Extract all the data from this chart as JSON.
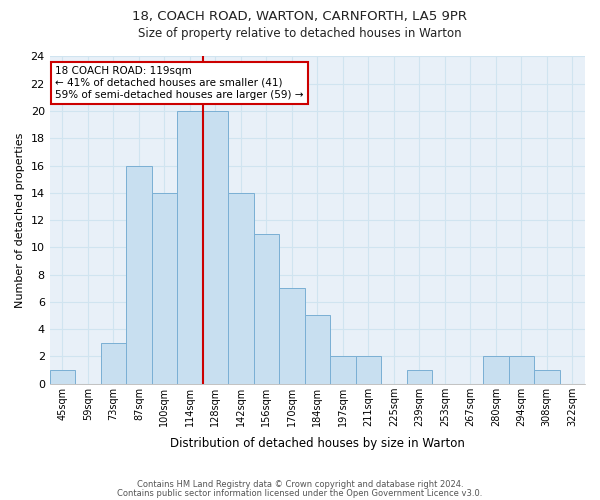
{
  "title1": "18, COACH ROAD, WARTON, CARNFORTH, LA5 9PR",
  "title2": "Size of property relative to detached houses in Warton",
  "xlabel": "Distribution of detached houses by size in Warton",
  "ylabel": "Number of detached properties",
  "bin_labels": [
    "45sqm",
    "59sqm",
    "73sqm",
    "87sqm",
    "100sqm",
    "114sqm",
    "128sqm",
    "142sqm",
    "156sqm",
    "170sqm",
    "184sqm",
    "197sqm",
    "211sqm",
    "225sqm",
    "239sqm",
    "253sqm",
    "267sqm",
    "280sqm",
    "294sqm",
    "308sqm",
    "322sqm"
  ],
  "bar_heights": [
    1,
    0,
    3,
    16,
    14,
    20,
    20,
    14,
    11,
    7,
    5,
    2,
    2,
    0,
    1,
    0,
    0,
    2,
    2,
    1,
    0
  ],
  "bar_color": "#c8dff0",
  "bar_edge_color": "#7aafd4",
  "grid_color": "#d0e4f0",
  "bg_color": "#e8f0f8",
  "vline_x_index": 6,
  "vline_color": "#cc0000",
  "annotation_title": "18 COACH ROAD: 119sqm",
  "annotation_line1": "← 41% of detached houses are smaller (41)",
  "annotation_line2": "59% of semi-detached houses are larger (59) →",
  "annotation_box_color": "#ffffff",
  "annotation_box_edge": "#cc0000",
  "ylim": [
    0,
    24
  ],
  "yticks": [
    0,
    2,
    4,
    6,
    8,
    10,
    12,
    14,
    16,
    18,
    20,
    22,
    24
  ],
  "footnote1": "Contains HM Land Registry data © Crown copyright and database right 2024.",
  "footnote2": "Contains public sector information licensed under the Open Government Licence v3.0."
}
